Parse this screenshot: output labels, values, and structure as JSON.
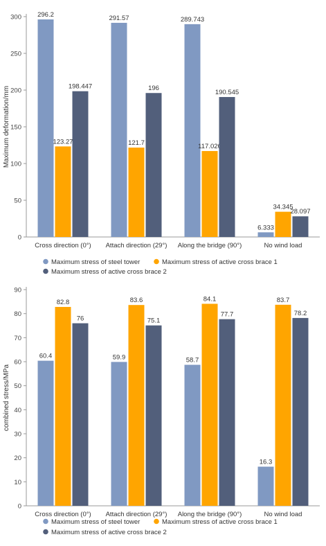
{
  "colors": {
    "steel_tower": "#8099c2",
    "brace1": "#ffa500",
    "brace2": "#525f7b"
  },
  "chart_data": [
    {
      "type": "bar",
      "title": "",
      "xlabel": "",
      "ylabel": "Maximum deformation/mm",
      "ylim": [
        0,
        300
      ],
      "yticks": [
        0,
        50,
        100,
        150,
        200,
        250,
        300
      ],
      "categories": [
        "Cross direction (0°)",
        "Attach direction (29°)",
        "Along the bridge (90°)",
        "No wind load"
      ],
      "series": [
        {
          "name": "Maximum stress of steel tower",
          "values": [
            296.2,
            291.57,
            289.743,
            6.333
          ],
          "labels": [
            "296.2",
            "291.57",
            "289.743",
            "6.333"
          ]
        },
        {
          "name": "Maximum stress of active cross brace 1",
          "values": [
            123.27,
            121.7,
            117.026,
            34.345
          ],
          "labels": [
            "123.27",
            "121.7",
            "117.026",
            "34.345"
          ]
        },
        {
          "name": "Maximum stress of active cross brace 2",
          "values": [
            198.447,
            196,
            190.545,
            28.097
          ],
          "labels": [
            "198.447",
            "196",
            "190.545",
            "28.097"
          ]
        }
      ],
      "legend": "bottom"
    },
    {
      "type": "bar",
      "title": "",
      "xlabel": "",
      "ylabel": "combined stress/MPa",
      "ylim": [
        0,
        90
      ],
      "yticks": [
        0,
        10,
        20,
        30,
        40,
        50,
        60,
        70,
        80,
        90
      ],
      "categories": [
        "Cross direction (0°)",
        "Attach direction (29°)",
        "Along the bridge (90°)",
        "No wind load"
      ],
      "series": [
        {
          "name": "Maximum stress of steel tower",
          "values": [
            60.4,
            59.9,
            58.7,
            16.3
          ],
          "labels": [
            "60.4",
            "59.9",
            "58.7",
            "16.3"
          ]
        },
        {
          "name": "Maximum stress of active cross brace 1",
          "values": [
            82.8,
            83.6,
            84.1,
            83.7
          ],
          "labels": [
            "82.8",
            "83.6",
            "84.1",
            "83.7"
          ]
        },
        {
          "name": "Maximum stress of active cross brace 2",
          "values": [
            76,
            75.1,
            77.7,
            78.2
          ],
          "labels": [
            "76",
            "75.1",
            "77.7",
            "78.2"
          ]
        }
      ],
      "legend": "bottom"
    }
  ]
}
